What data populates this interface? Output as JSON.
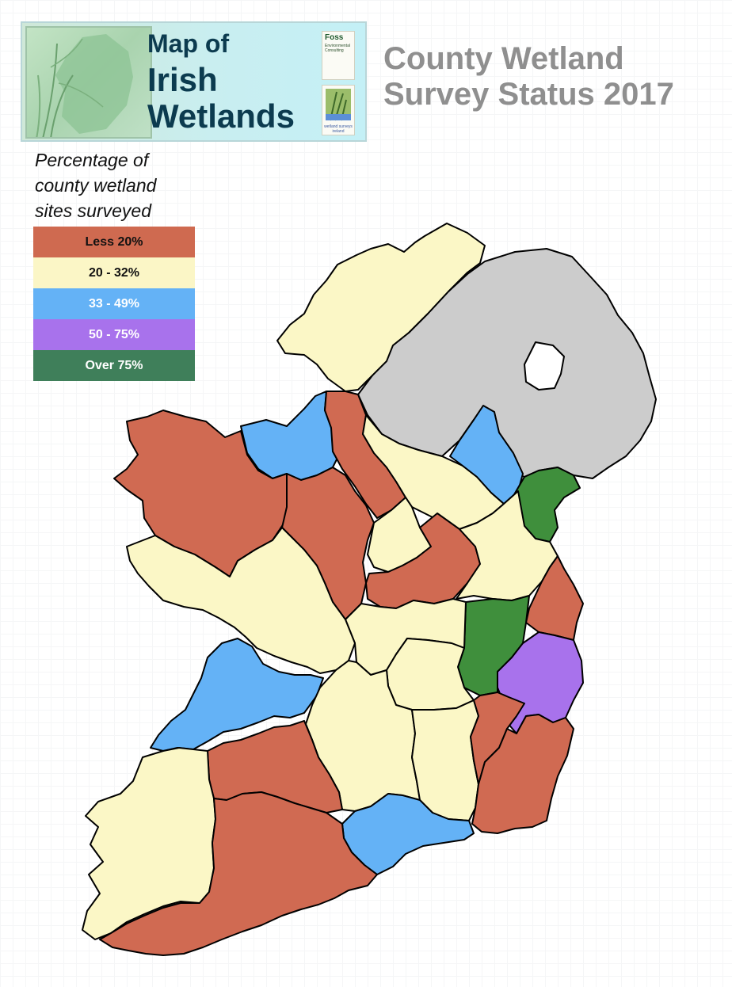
{
  "header": {
    "banner_title_line1": "Map of",
    "banner_title_line2": "Irish",
    "banner_title_line3": "Wetlands",
    "logo1_text": "Foss",
    "logo1_sub1": "Environmental",
    "logo1_sub2": "Consulting",
    "logo2_caption": "wetland surveys ireland",
    "title_line1": "County Wetland",
    "title_line2": "Survey Status 2017"
  },
  "legend": {
    "title_line1": "Percentage of",
    "title_line2": "county wetland",
    "title_line3": "sites surveyed",
    "items": [
      {
        "label": "Less 20%",
        "color": "#cf6a50",
        "text_color": "#111111"
      },
      {
        "label": "20 - 32%",
        "color": "#fbf6c6",
        "text_color": "#111111"
      },
      {
        "label": "33 - 49%",
        "color": "#64b2f6",
        "text_color": "#ffffff"
      },
      {
        "label": "50 - 75%",
        "color": "#a872ec",
        "text_color": "#ffffff"
      },
      {
        "label": "Over 75%",
        "color": "#3f7f5a",
        "text_color": "#ffffff"
      }
    ]
  },
  "map": {
    "colors": {
      "less20": "#d06a52",
      "p20_32": "#fbf7c6",
      "p33_49": "#64b2f6",
      "p50_75": "#a872ec",
      "over75": "#3f8f3c",
      "not_surveyed": "#cccccc",
      "outline": "#000000"
    }
  }
}
